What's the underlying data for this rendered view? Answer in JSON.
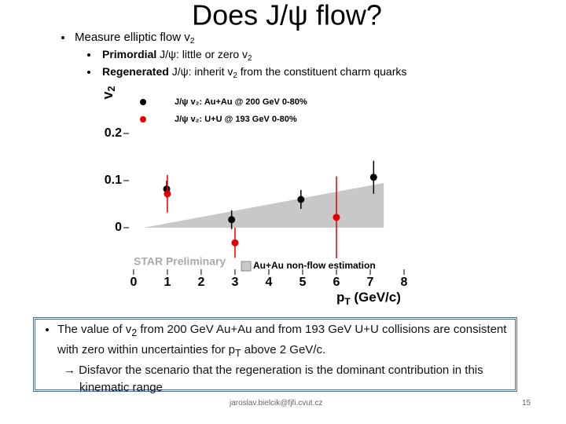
{
  "title": "Does J/ψ flow?",
  "bullets": [
    {
      "text": [
        "Measure elliptic flow v",
        "2"
      ]
    },
    {
      "text": [
        "Primordial",
        " J/ψ: little or zero v",
        "2"
      ]
    },
    {
      "text": [
        "Regenerated",
        " J/ψ: inherit  v",
        "2",
        " from the constituent charm quarks"
      ]
    }
  ],
  "chart_data": {
    "type": "scatter",
    "ylabel": [
      "v",
      "2"
    ],
    "xlabel": [
      "p",
      "T",
      " (GeV/c)"
    ],
    "xlim": [
      -0.3,
      8.0
    ],
    "ylim": [
      -0.1,
      0.3
    ],
    "xticks": [
      0,
      1,
      2,
      3,
      4,
      5,
      6,
      7,
      8
    ],
    "yticks": [
      0,
      0.1,
      0.2
    ],
    "legend": "upper left",
    "annotation": "STAR Preliminary",
    "series": [
      {
        "name": "J/ψ v₂: Au+Au @ 200 GeV 0-80%",
        "color": "#000000",
        "x": [
          0.98,
          2.9,
          4.95,
          7.1
        ],
        "values": [
          0.082,
          0.017,
          0.06,
          0.107
        ],
        "errors": [
          0.018,
          0.02,
          0.02,
          0.035
        ]
      },
      {
        "name": "J/ψ v₂: U+U @ 193 GeV 0-80%",
        "color": "#e00000",
        "x": [
          1.0,
          3.0,
          6.0
        ],
        "values": [
          0.072,
          -0.032,
          0.022
        ],
        "errors": [
          0.04,
          0.032,
          0.087
        ]
      }
    ],
    "band": {
      "name": "Au+Au non-flow estimation",
      "color": "#c8c8c8",
      "x": [
        0.3,
        7.4
      ],
      "values": [
        0,
        0.095
      ]
    }
  },
  "conclusion": {
    "text": [
      "The value of v",
      "2",
      " from  200 GeV Au+Au and from 193 GeV U+U collisions are consistent with zero within uncertainties for p",
      "T",
      " above 2 GeV/c."
    ],
    "implication": "→ Disfavor the scenario that the regeneration is the dominant contribution in this kinematic range"
  },
  "footer": {
    "email": "jaroslav.bielcik@fjfi.cvut.cz",
    "page": "15"
  }
}
